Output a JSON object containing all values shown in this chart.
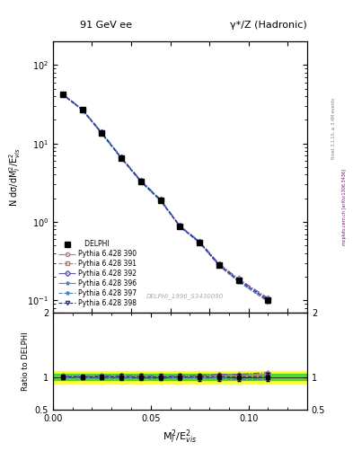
{
  "title_left": "91 GeV ee",
  "title_right": "γ*/Z (Hadronic)",
  "ylabel_main": "N dσ/dM$_l$$^2$/E$_{vis}$$^2$",
  "ylabel_ratio": "Ratio to DELPHI",
  "xlabel": "M$_l$$^2$/E$_{vis}$$^2$",
  "watermark": "DELPHI_1996_S3430090",
  "rivet_text": "Rivet 3.1.10, ≥ 3.4M events",
  "mcplots_text": "mcplots.cern.ch [arXiv:1306.3436]",
  "x_data": [
    0.005,
    0.015,
    0.025,
    0.035,
    0.045,
    0.055,
    0.065,
    0.075,
    0.085,
    0.095,
    0.11
  ],
  "delphi_y": [
    42.0,
    27.0,
    13.5,
    6.5,
    3.3,
    1.9,
    0.87,
    0.55,
    0.28,
    0.18,
    0.1
  ],
  "delphi_yerr": [
    1.5,
    1.0,
    0.5,
    0.3,
    0.15,
    0.09,
    0.04,
    0.03,
    0.015,
    0.01,
    0.006
  ],
  "mc_390_y": [
    42.5,
    27.2,
    13.7,
    6.6,
    3.35,
    1.92,
    0.88,
    0.56,
    0.29,
    0.185,
    0.105
  ],
  "mc_391_y": [
    42.3,
    27.1,
    13.6,
    6.55,
    3.32,
    1.91,
    0.875,
    0.555,
    0.285,
    0.182,
    0.102
  ],
  "mc_392_y": [
    42.8,
    27.3,
    13.8,
    6.65,
    3.38,
    1.93,
    0.89,
    0.565,
    0.292,
    0.188,
    0.107
  ],
  "mc_396_y": [
    41.8,
    26.8,
    13.3,
    6.45,
    3.25,
    1.87,
    0.865,
    0.545,
    0.278,
    0.175,
    0.098
  ],
  "mc_397_y": [
    41.5,
    26.6,
    13.2,
    6.4,
    3.22,
    1.85,
    0.86,
    0.54,
    0.275,
    0.172,
    0.096
  ],
  "mc_398_y": [
    42.2,
    27.0,
    13.55,
    6.52,
    3.3,
    1.9,
    0.872,
    0.552,
    0.282,
    0.18,
    0.101
  ],
  "xlim": [
    0.0,
    0.13
  ],
  "ylim_main": [
    0.07,
    200.0
  ],
  "ylim_ratio": [
    0.5,
    2.0
  ],
  "band_yellow": 0.1,
  "band_green": 0.05,
  "color_390": "#cc6677",
  "color_391": "#cc6677",
  "color_392": "#6655aa",
  "color_396": "#4488bb",
  "color_397": "#4488bb",
  "color_398": "#223399",
  "ls_390": "-.",
  "ls_391": "--",
  "ls_392": "-.",
  "ls_396": "-.",
  "ls_397": "--",
  "ls_398": "--",
  "marker_390": "o",
  "marker_391": "s",
  "marker_392": "D",
  "marker_396": "*",
  "marker_397": "*",
  "marker_398": "v"
}
